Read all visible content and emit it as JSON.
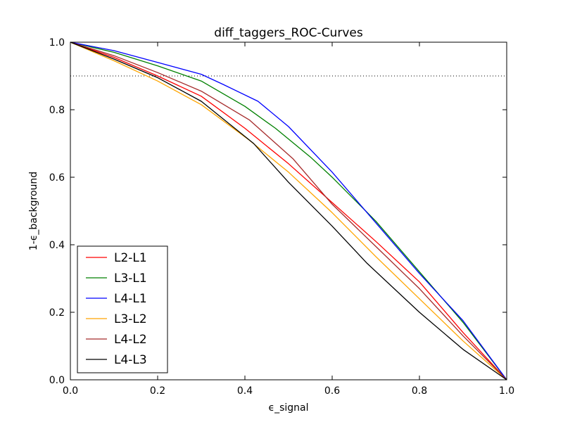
{
  "chart_data": {
    "type": "line",
    "title": "diff_taggers_ROC-Curves",
    "xlabel": "ϵ_signal",
    "ylabel": "1-ϵ_background",
    "xlim": [
      0.0,
      1.0
    ],
    "ylim": [
      0.0,
      1.0
    ],
    "xticks": [
      "0.0",
      "0.2",
      "0.4",
      "0.6",
      "0.8",
      "1.0"
    ],
    "yticks": [
      "0.0",
      "0.2",
      "0.4",
      "0.6",
      "0.8",
      "1.0"
    ],
    "grid": false,
    "legend_position": "lower-left",
    "reference_line": {
      "y": 0.9,
      "style": "dotted",
      "color": "#000000"
    },
    "series": [
      {
        "name": "L2-L1",
        "color": "#ff0000",
        "x": [
          0.0,
          0.1,
          0.2,
          0.3,
          0.4,
          0.5,
          0.6,
          0.7,
          0.8,
          0.9,
          1.0
        ],
        "y": [
          1.0,
          0.955,
          0.9,
          0.84,
          0.745,
          0.64,
          0.525,
          0.41,
          0.29,
          0.14,
          0.0
        ]
      },
      {
        "name": "L3-L1",
        "color": "#008000",
        "x": [
          0.0,
          0.1,
          0.2,
          0.3,
          0.4,
          0.47,
          0.55,
          0.6,
          0.7,
          0.8,
          0.9,
          1.0
        ],
        "y": [
          1.0,
          0.97,
          0.93,
          0.885,
          0.81,
          0.745,
          0.66,
          0.6,
          0.47,
          0.32,
          0.17,
          0.0
        ]
      },
      {
        "name": "L4-L1",
        "color": "#0000ff",
        "x": [
          0.0,
          0.1,
          0.2,
          0.3,
          0.35,
          0.43,
          0.5,
          0.6,
          0.7,
          0.8,
          0.9,
          1.0
        ],
        "y": [
          1.0,
          0.975,
          0.94,
          0.905,
          0.875,
          0.825,
          0.75,
          0.615,
          0.465,
          0.315,
          0.175,
          0.0
        ]
      },
      {
        "name": "L3-L2",
        "color": "#ffa500",
        "x": [
          0.0,
          0.1,
          0.2,
          0.3,
          0.41,
          0.5,
          0.6,
          0.7,
          0.8,
          0.9,
          1.0
        ],
        "y": [
          1.0,
          0.945,
          0.885,
          0.815,
          0.71,
          0.615,
          0.495,
          0.365,
          0.24,
          0.115,
          0.0
        ]
      },
      {
        "name": "L4-L2",
        "color": "#a52a2a",
        "x": [
          0.0,
          0.1,
          0.2,
          0.3,
          0.41,
          0.51,
          0.6,
          0.7,
          0.8,
          0.9,
          1.0
        ],
        "y": [
          1.0,
          0.96,
          0.91,
          0.855,
          0.77,
          0.655,
          0.52,
          0.395,
          0.27,
          0.13,
          0.0
        ]
      },
      {
        "name": "L4-L3",
        "color": "#000000",
        "x": [
          0.0,
          0.1,
          0.2,
          0.3,
          0.42,
          0.5,
          0.6,
          0.68,
          0.8,
          0.9,
          1.0
        ],
        "y": [
          1.0,
          0.95,
          0.895,
          0.825,
          0.7,
          0.585,
          0.455,
          0.345,
          0.2,
          0.09,
          0.0
        ]
      }
    ]
  }
}
